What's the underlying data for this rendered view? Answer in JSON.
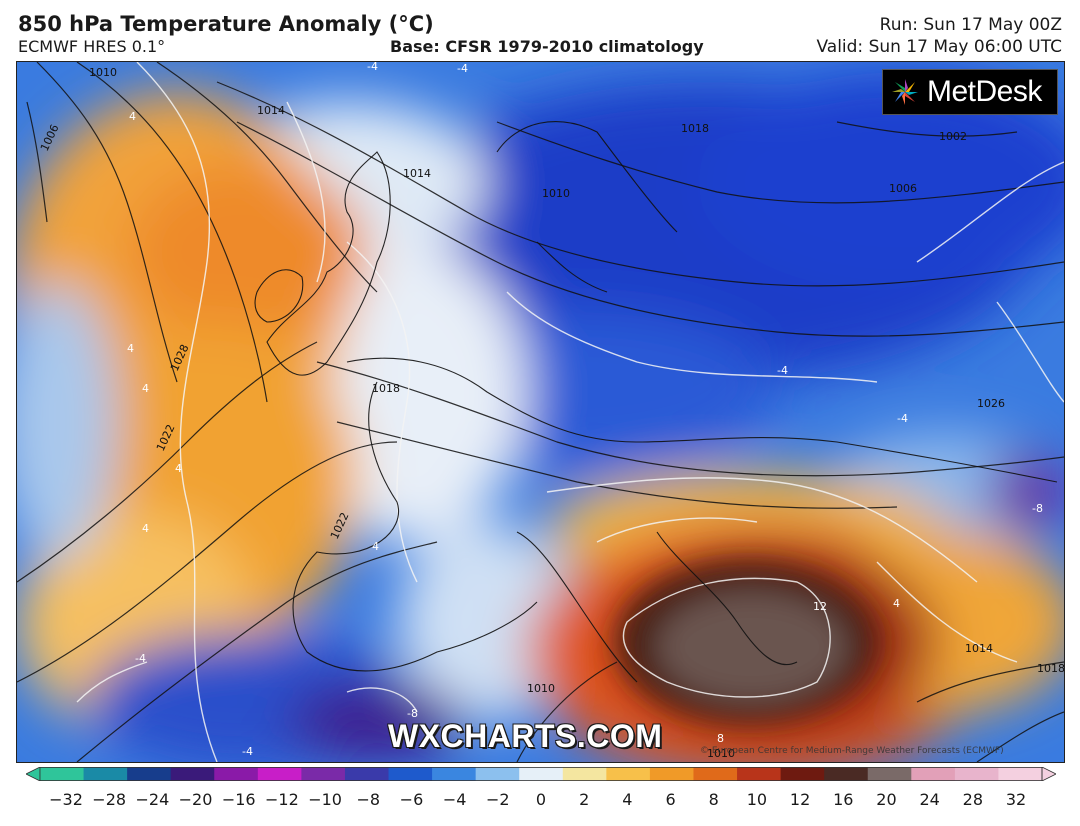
{
  "header": {
    "title": "850 hPa Temperature Anomaly (°C)",
    "model": "ECMWF HRES 0.1°",
    "base": "Base: CFSR 1979-2010 climatology",
    "run": "Run: Sun 17 May 00Z",
    "valid": "Valid: Sun 17 May 06:00 UTC"
  },
  "branding": {
    "provider_logo": "MetDesk",
    "logo_icon": "pinwheel-icon",
    "site": "WXCHARTS.COM",
    "copyright": "© European Centre for Medium-Range Weather Forecasts (ECMWF)"
  },
  "map": {
    "variable": "850 hPa temperature anomaly",
    "units": "°C",
    "isobar_labels": [
      "1010",
      "1014",
      "1006",
      "1014",
      "1010",
      "1018",
      "1002",
      "1006",
      "1028",
      "1022",
      "1018",
      "1026",
      "1022",
      "1014",
      "1010",
      "1018",
      "1010"
    ],
    "anomaly_contour_labels": [
      "4",
      "-4",
      "-4",
      "4",
      "4",
      "4",
      "4",
      "-4",
      "-4",
      "-8",
      "12",
      "4",
      "-4",
      "-4",
      "-8",
      "8",
      "4"
    ],
    "warm_anomaly_center": "Balkans / Greece",
    "cold_anomaly_center": "Central and Northern Europe"
  },
  "colorbar": {
    "ticks": [
      "-32",
      "-28",
      "-24",
      "-20",
      "-16",
      "-12",
      "-10",
      "-8",
      "-6",
      "-4",
      "-2",
      "0",
      "2",
      "4",
      "6",
      "8",
      "10",
      "12",
      "16",
      "20",
      "24",
      "28",
      "32"
    ],
    "colors": [
      "#2fc59a",
      "#1a8aa6",
      "#173d8c",
      "#3a1a7a",
      "#8a1aa8",
      "#c81ec8",
      "#7a2aa8",
      "#3a3aaa",
      "#1e5acc",
      "#3a86e0",
      "#8cc0ee",
      "#e6f0f8",
      "#f4e6a0",
      "#f7c04a",
      "#f09a28",
      "#e06a1a",
      "#b8341a",
      "#6e1a10",
      "#4a2a24",
      "#7a6a68",
      "#e2a0b8",
      "#e8b4cc",
      "#f4d0e0"
    ]
  },
  "colors": {
    "cold_deep": "#1f3ec7",
    "cold": "#3a74de",
    "neutral": "#eaf2fa",
    "warm": "#f5b23a",
    "hot": "#e0551b",
    "very_hot": "#5a2418"
  }
}
